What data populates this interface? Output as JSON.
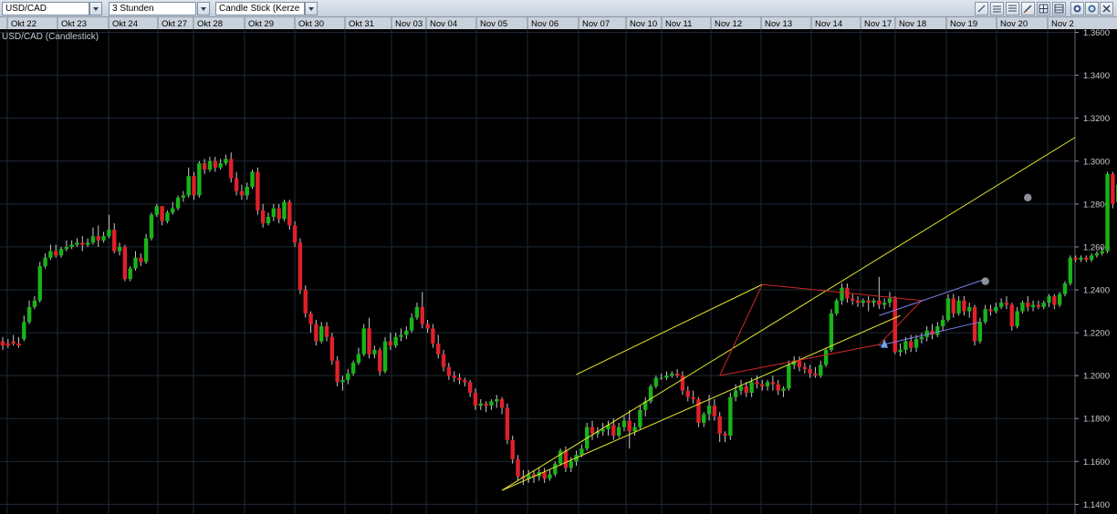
{
  "toolbar": {
    "symbol": "USD/CAD",
    "period": "3 Stunden",
    "chart_style": "Candle Stick (Kerze"
  },
  "chart_data": {
    "type": "candlestick",
    "title": "USD/CAD (Candlestick)",
    "x_tick_labels": [
      "Okt 22",
      "Okt 23",
      "Okt 24",
      "Okt 27",
      "Okt 28",
      "Okt 29",
      "Okt 30",
      "Okt 31",
      "Nov 03",
      "Nov 04",
      "Nov 05",
      "Nov 06",
      "Nov 07",
      "Nov 10",
      "Nov 11",
      "Nov 12",
      "Nov 13",
      "Nov 14",
      "Nov 17",
      "Nov 18",
      "Nov 19",
      "Nov 20",
      "Nov 2"
    ],
    "y_ticks": [
      1.14,
      1.16,
      1.18,
      1.2,
      1.22,
      1.24,
      1.26,
      1.28,
      1.3,
      1.32,
      1.34,
      1.36
    ],
    "y_tick_labels": [
      "1.1400",
      "1.1600",
      "1.1800",
      "1.2000",
      "1.2200",
      "1.2400",
      "1.2600",
      "1.2800",
      "1.3000",
      "1.3200",
      "1.3400",
      "1.3600"
    ],
    "ylim": [
      1.1355,
      1.3615
    ],
    "grid": true,
    "colors": {
      "up": "#18b418",
      "down": "#e0202a",
      "wick": "#c8c8c8",
      "trend_channel": "#e4e42a",
      "triangle": "#d02828",
      "flag": "#7f7ff0",
      "grid": "#1e2a36"
    },
    "candles": [
      [
        1.216,
        1.218,
        1.214,
        1.212
      ],
      [
        1.215,
        1.217,
        1.214,
        1.213
      ],
      [
        1.216,
        1.219,
        1.215,
        1.214
      ],
      [
        1.215,
        1.218,
        1.214,
        1.213
      ],
      [
        1.217,
        1.228,
        1.225,
        1.216
      ],
      [
        1.225,
        1.235,
        1.232,
        1.224
      ],
      [
        1.232,
        1.237,
        1.235,
        1.231
      ],
      [
        1.235,
        1.253,
        1.251,
        1.234
      ],
      [
        1.251,
        1.257,
        1.255,
        1.25
      ],
      [
        1.255,
        1.261,
        1.258,
        1.254
      ],
      [
        1.258,
        1.261,
        1.256,
        1.255
      ],
      [
        1.256,
        1.26,
        1.259,
        1.255
      ],
      [
        1.259,
        1.263,
        1.26,
        1.258
      ],
      [
        1.26,
        1.263,
        1.261,
        1.259
      ],
      [
        1.261,
        1.264,
        1.262,
        1.26
      ],
      [
        1.262,
        1.265,
        1.261,
        1.258
      ],
      [
        1.261,
        1.264,
        1.262,
        1.26
      ],
      [
        1.262,
        1.269,
        1.265,
        1.261
      ],
      [
        1.265,
        1.27,
        1.263,
        1.26
      ],
      [
        1.263,
        1.267,
        1.265,
        1.262
      ],
      [
        1.265,
        1.275,
        1.268,
        1.264
      ],
      [
        1.268,
        1.271,
        1.258,
        1.257
      ],
      [
        1.258,
        1.262,
        1.26,
        1.256
      ],
      [
        1.26,
        1.261,
        1.245,
        1.244
      ],
      [
        1.245,
        1.251,
        1.25,
        1.244
      ],
      [
        1.25,
        1.258,
        1.255,
        1.249
      ],
      [
        1.255,
        1.257,
        1.253,
        1.251
      ],
      [
        1.253,
        1.266,
        1.264,
        1.252
      ],
      [
        1.264,
        1.276,
        1.275,
        1.263
      ],
      [
        1.275,
        1.28,
        1.279,
        1.274
      ],
      [
        1.279,
        1.279,
        1.272,
        1.27
      ],
      [
        1.272,
        1.277,
        1.276,
        1.271
      ],
      [
        1.276,
        1.281,
        1.278,
        1.275
      ],
      [
        1.278,
        1.284,
        1.283,
        1.277
      ],
      [
        1.283,
        1.286,
        1.284,
        1.281
      ],
      [
        1.284,
        1.297,
        1.293,
        1.283
      ],
      [
        1.293,
        1.295,
        1.284,
        1.282
      ],
      [
        1.284,
        1.3,
        1.299,
        1.283
      ],
      [
        1.299,
        1.301,
        1.296,
        1.294
      ],
      [
        1.296,
        1.302,
        1.3,
        1.295
      ],
      [
        1.3,
        1.302,
        1.297,
        1.295
      ],
      [
        1.297,
        1.301,
        1.299,
        1.296
      ],
      [
        1.299,
        1.303,
        1.301,
        1.298
      ],
      [
        1.301,
        1.304,
        1.292,
        1.29
      ],
      [
        1.292,
        1.295,
        1.286,
        1.284
      ],
      [
        1.286,
        1.289,
        1.284,
        1.282
      ],
      [
        1.284,
        1.29,
        1.288,
        1.282
      ],
      [
        1.288,
        1.296,
        1.295,
        1.287
      ],
      [
        1.295,
        1.297,
        1.277,
        1.275
      ],
      [
        1.277,
        1.28,
        1.271,
        1.269
      ],
      [
        1.271,
        1.276,
        1.274,
        1.27
      ],
      [
        1.274,
        1.28,
        1.278,
        1.272
      ],
      [
        1.278,
        1.28,
        1.273,
        1.271
      ],
      [
        1.273,
        1.282,
        1.281,
        1.272
      ],
      [
        1.281,
        1.282,
        1.27,
        1.268
      ],
      [
        1.27,
        1.272,
        1.262,
        1.26
      ],
      [
        1.262,
        1.264,
        1.24,
        1.238
      ],
      [
        1.24,
        1.242,
        1.229,
        1.227
      ],
      [
        1.229,
        1.23,
        1.224,
        1.22
      ],
      [
        1.224,
        1.226,
        1.216,
        1.214
      ],
      [
        1.216,
        1.225,
        1.223,
        1.215
      ],
      [
        1.223,
        1.225,
        1.218,
        1.216
      ],
      [
        1.218,
        1.22,
        1.207,
        1.205
      ],
      [
        1.207,
        1.209,
        1.197,
        1.195
      ],
      [
        1.197,
        1.2,
        1.198,
        1.193
      ],
      [
        1.198,
        1.203,
        1.201,
        1.196
      ],
      [
        1.201,
        1.207,
        1.206,
        1.2
      ],
      [
        1.206,
        1.213,
        1.21,
        1.205
      ],
      [
        1.21,
        1.224,
        1.222,
        1.209
      ],
      [
        1.222,
        1.227,
        1.21,
        1.208
      ],
      [
        1.21,
        1.214,
        1.212,
        1.208
      ],
      [
        1.212,
        1.213,
        1.202,
        1.2
      ],
      [
        1.202,
        1.218,
        1.216,
        1.201
      ],
      [
        1.216,
        1.22,
        1.214,
        1.212
      ],
      [
        1.214,
        1.22,
        1.218,
        1.213
      ],
      [
        1.218,
        1.222,
        1.219,
        1.216
      ],
      [
        1.219,
        1.223,
        1.221,
        1.217
      ],
      [
        1.221,
        1.229,
        1.227,
        1.22
      ],
      [
        1.227,
        1.234,
        1.232,
        1.226
      ],
      [
        1.232,
        1.239,
        1.224,
        1.222
      ],
      [
        1.224,
        1.226,
        1.222,
        1.22
      ],
      [
        1.222,
        1.224,
        1.215,
        1.213
      ],
      [
        1.215,
        1.219,
        1.21,
        1.208
      ],
      [
        1.21,
        1.212,
        1.204,
        1.202
      ],
      [
        1.204,
        1.206,
        1.2,
        1.198
      ],
      [
        1.2,
        1.202,
        1.199,
        1.197
      ],
      [
        1.199,
        1.201,
        1.198,
        1.196
      ],
      [
        1.198,
        1.199,
        1.197,
        1.195
      ],
      [
        1.197,
        1.198,
        1.192,
        1.19
      ],
      [
        1.192,
        1.194,
        1.186,
        1.184
      ],
      [
        1.186,
        1.189,
        1.187,
        1.184
      ],
      [
        1.187,
        1.188,
        1.186,
        1.183
      ],
      [
        1.186,
        1.189,
        1.188,
        1.184
      ],
      [
        1.188,
        1.191,
        1.189,
        1.185
      ],
      [
        1.189,
        1.19,
        1.185,
        1.182
      ],
      [
        1.185,
        1.187,
        1.17,
        1.168
      ],
      [
        1.17,
        1.172,
        1.161,
        1.159
      ],
      [
        1.161,
        1.163,
        1.153,
        1.151
      ],
      [
        1.153,
        1.156,
        1.152,
        1.149
      ],
      [
        1.152,
        1.156,
        1.154,
        1.15
      ],
      [
        1.154,
        1.156,
        1.153,
        1.15
      ],
      [
        1.153,
        1.157,
        1.155,
        1.151
      ],
      [
        1.155,
        1.157,
        1.152,
        1.15
      ],
      [
        1.152,
        1.156,
        1.154,
        1.151
      ],
      [
        1.154,
        1.16,
        1.159,
        1.153
      ],
      [
        1.159,
        1.166,
        1.165,
        1.158
      ],
      [
        1.165,
        1.167,
        1.157,
        1.155
      ],
      [
        1.157,
        1.162,
        1.16,
        1.155
      ],
      [
        1.16,
        1.165,
        1.163,
        1.158
      ],
      [
        1.163,
        1.168,
        1.166,
        1.162
      ],
      [
        1.166,
        1.178,
        1.176,
        1.165
      ],
      [
        1.176,
        1.179,
        1.173,
        1.17
      ],
      [
        1.173,
        1.176,
        1.174,
        1.171
      ],
      [
        1.174,
        1.178,
        1.175,
        1.172
      ],
      [
        1.175,
        1.179,
        1.177,
        1.172
      ],
      [
        1.177,
        1.18,
        1.172,
        1.17
      ],
      [
        1.172,
        1.178,
        1.176,
        1.171
      ],
      [
        1.176,
        1.181,
        1.179,
        1.174
      ],
      [
        1.179,
        1.184,
        1.174,
        1.166
      ],
      [
        1.174,
        1.178,
        1.176,
        1.172
      ],
      [
        1.176,
        1.186,
        1.184,
        1.175
      ],
      [
        1.184,
        1.19,
        1.188,
        1.181
      ],
      [
        1.188,
        1.196,
        1.195,
        1.187
      ],
      [
        1.195,
        1.2,
        1.199,
        1.194
      ],
      [
        1.199,
        1.201,
        1.199,
        1.198
      ],
      [
        1.199,
        1.202,
        1.2,
        1.198
      ],
      [
        1.2,
        1.202,
        1.201,
        1.199
      ],
      [
        1.201,
        1.203,
        1.2,
        1.199
      ],
      [
        1.2,
        1.202,
        1.193,
        1.191
      ],
      [
        1.193,
        1.195,
        1.19,
        1.188
      ],
      [
        1.19,
        1.193,
        1.189,
        1.187
      ],
      [
        1.189,
        1.19,
        1.178,
        1.176
      ],
      [
        1.178,
        1.183,
        1.182,
        1.176
      ],
      [
        1.182,
        1.191,
        1.186,
        1.179
      ],
      [
        1.186,
        1.189,
        1.181,
        1.179
      ],
      [
        1.181,
        1.183,
        1.173,
        1.169
      ],
      [
        1.173,
        1.174,
        1.172,
        1.169
      ],
      [
        1.172,
        1.192,
        1.19,
        1.17
      ],
      [
        1.19,
        1.196,
        1.193,
        1.188
      ],
      [
        1.193,
        1.198,
        1.195,
        1.191
      ],
      [
        1.195,
        1.197,
        1.192,
        1.19
      ],
      [
        1.192,
        1.199,
        1.197,
        1.19
      ],
      [
        1.197,
        1.2,
        1.196,
        1.194
      ],
      [
        1.196,
        1.198,
        1.195,
        1.193
      ],
      [
        1.195,
        1.198,
        1.197,
        1.193
      ],
      [
        1.197,
        1.2,
        1.196,
        1.193
      ],
      [
        1.196,
        1.198,
        1.193,
        1.191
      ],
      [
        1.193,
        1.195,
        1.194,
        1.19
      ],
      [
        1.194,
        1.207,
        1.205,
        1.193
      ],
      [
        1.205,
        1.209,
        1.207,
        1.203
      ],
      [
        1.207,
        1.209,
        1.204,
        1.202
      ],
      [
        1.204,
        1.206,
        1.203,
        1.201
      ],
      [
        1.203,
        1.205,
        1.201,
        1.199
      ],
      [
        1.201,
        1.204,
        1.2,
        1.199
      ],
      [
        1.2,
        1.207,
        1.205,
        1.199
      ],
      [
        1.205,
        1.213,
        1.212,
        1.204
      ],
      [
        1.212,
        1.231,
        1.229,
        1.211
      ],
      [
        1.229,
        1.236,
        1.235,
        1.228
      ],
      [
        1.235,
        1.243,
        1.241,
        1.233
      ],
      [
        1.241,
        1.243,
        1.236,
        1.234
      ],
      [
        1.236,
        1.238,
        1.235,
        1.233
      ],
      [
        1.235,
        1.237,
        1.234,
        1.232
      ],
      [
        1.234,
        1.236,
        1.235,
        1.232
      ],
      [
        1.235,
        1.237,
        1.234,
        1.23
      ],
      [
        1.234,
        1.236,
        1.235,
        1.232
      ],
      [
        1.235,
        1.246,
        1.233,
        1.231
      ],
      [
        1.233,
        1.236,
        1.234,
        1.231
      ],
      [
        1.234,
        1.239,
        1.236,
        1.232
      ],
      [
        1.236,
        1.237,
        1.211,
        1.21
      ],
      [
        1.211,
        1.215,
        1.212,
        1.209
      ],
      [
        1.212,
        1.218,
        1.216,
        1.21
      ],
      [
        1.216,
        1.219,
        1.213,
        1.211
      ],
      [
        1.213,
        1.219,
        1.217,
        1.211
      ],
      [
        1.217,
        1.22,
        1.218,
        1.215
      ],
      [
        1.218,
        1.223,
        1.221,
        1.216
      ],
      [
        1.221,
        1.224,
        1.219,
        1.217
      ],
      [
        1.219,
        1.225,
        1.223,
        1.218
      ],
      [
        1.223,
        1.228,
        1.226,
        1.221
      ],
      [
        1.226,
        1.238,
        1.236,
        1.225
      ],
      [
        1.236,
        1.238,
        1.229,
        1.227
      ],
      [
        1.229,
        1.237,
        1.235,
        1.228
      ],
      [
        1.235,
        1.237,
        1.23,
        1.228
      ],
      [
        1.23,
        1.234,
        1.232,
        1.227
      ],
      [
        1.232,
        1.233,
        1.216,
        1.214
      ],
      [
        1.216,
        1.227,
        1.225,
        1.215
      ],
      [
        1.225,
        1.233,
        1.231,
        1.224
      ],
      [
        1.231,
        1.233,
        1.23,
        1.228
      ],
      [
        1.23,
        1.234,
        1.232,
        1.229
      ],
      [
        1.232,
        1.236,
        1.234,
        1.231
      ],
      [
        1.234,
        1.237,
        1.233,
        1.231
      ],
      [
        1.233,
        1.234,
        1.223,
        1.221
      ],
      [
        1.223,
        1.232,
        1.23,
        1.222
      ],
      [
        1.23,
        1.235,
        1.234,
        1.229
      ],
      [
        1.234,
        1.237,
        1.232,
        1.23
      ],
      [
        1.232,
        1.235,
        1.233,
        1.23
      ],
      [
        1.233,
        1.235,
        1.232,
        1.231
      ],
      [
        1.232,
        1.235,
        1.234,
        1.231
      ],
      [
        1.234,
        1.238,
        1.237,
        1.232
      ],
      [
        1.237,
        1.238,
        1.233,
        1.231
      ],
      [
        1.233,
        1.239,
        1.238,
        1.232
      ],
      [
        1.238,
        1.244,
        1.243,
        1.237
      ],
      [
        1.243,
        1.256,
        1.255,
        1.242
      ],
      [
        1.255,
        1.256,
        1.254,
        1.253
      ],
      [
        1.254,
        1.256,
        1.255,
        1.253
      ],
      [
        1.255,
        1.256,
        1.254,
        1.253
      ],
      [
        1.254,
        1.257,
        1.256,
        1.253
      ],
      [
        1.256,
        1.258,
        1.257,
        1.255
      ],
      [
        1.257,
        1.26,
        1.258,
        1.256
      ],
      [
        1.258,
        1.295,
        1.294,
        1.257
      ],
      [
        1.294,
        1.295,
        1.28,
        1.278
      ],
      [
        1.281,
        1.29,
        1.289,
        1.28
      ]
    ]
  }
}
